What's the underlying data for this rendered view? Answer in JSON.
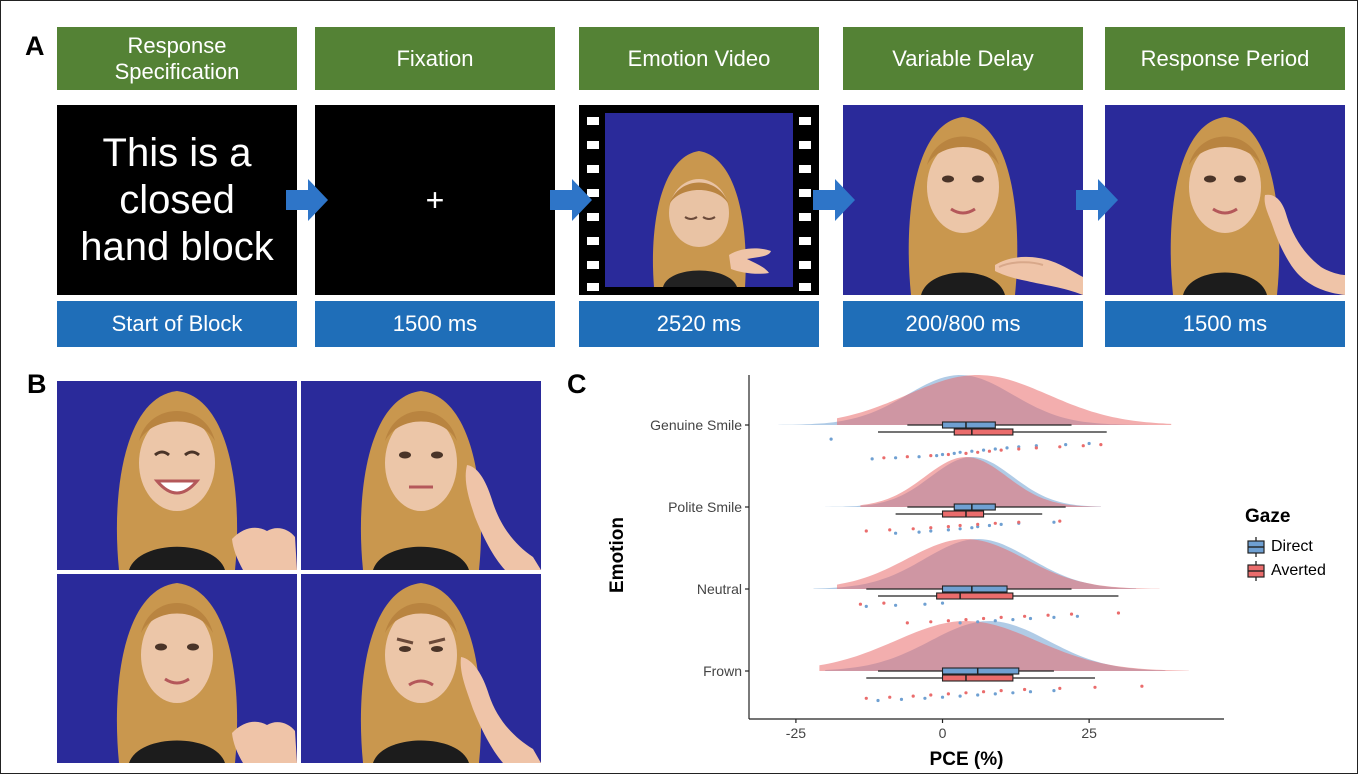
{
  "panels": {
    "a": "A",
    "b": "B",
    "c": "C"
  },
  "timeline": {
    "stages": [
      {
        "header": "Response Specification",
        "duration": "Start of Block"
      },
      {
        "header": "Fixation",
        "duration": "1500 ms"
      },
      {
        "header": "Emotion Video",
        "duration": "2520 ms"
      },
      {
        "header": "Variable Delay",
        "duration": "200/800 ms"
      },
      {
        "header": "Response Period",
        "duration": "1500 ms"
      }
    ],
    "instruction_lines": [
      "This is a",
      "closed",
      "hand block"
    ],
    "fixation_symbol": "+"
  },
  "colors": {
    "header_green": "#548235",
    "duration_blue": "#1f6eb8",
    "arrow_blue": "#2e75c8",
    "direct": "#6fa0d2",
    "averted": "#ea6c6c",
    "face_background": "#2a2a9a"
  },
  "icons": [
    "arrow-right-icon",
    "film-strip-icon"
  ],
  "chart_data": {
    "type": "raincloud",
    "xlabel": "PCE (%)",
    "ylabel": "Emotion",
    "xlim": [
      -33,
      48
    ],
    "x_ticks": [
      -25,
      0,
      25
    ],
    "grid": false,
    "legend": {
      "title": "Gaze",
      "position": "right",
      "entries": [
        "Direct",
        "Averted"
      ]
    },
    "categories": [
      "Genuine Smile",
      "Polite Smile",
      "Neutral",
      "Frown"
    ],
    "series": [
      {
        "name": "Direct",
        "color": "#6fa0d2",
        "box": [
          {
            "whisker_low": -6,
            "q1": 0,
            "median": 4,
            "q3": 9,
            "whisker_high": 22
          },
          {
            "whisker_low": -6,
            "q1": 2,
            "median": 5,
            "q3": 9,
            "whisker_high": 21
          },
          {
            "whisker_low": -13,
            "q1": 0,
            "median": 5,
            "q3": 11,
            "whisker_high": 22
          },
          {
            "whisker_low": -11,
            "q1": 0,
            "median": 6,
            "q3": 13,
            "whisker_high": 19
          }
        ],
        "density": [
          {
            "range": [
              -28,
              35
            ],
            "peak": 3,
            "sd": 9
          },
          {
            "range": [
              -20,
              27
            ],
            "peak": 5,
            "sd": 7
          },
          {
            "range": [
              -22,
              33
            ],
            "peak": 6,
            "sd": 9
          },
          {
            "range": [
              -20,
              38
            ],
            "peak": 8,
            "sd": 10
          }
        ],
        "points": [
          [
            -19,
            -12,
            -8,
            -4,
            -1,
            0,
            2,
            3,
            5,
            7,
            9,
            11,
            13,
            16,
            21,
            25
          ],
          [
            -8,
            -4,
            -2,
            1,
            3,
            5,
            6,
            8,
            10,
            13,
            19
          ],
          [
            -13,
            -8,
            -3,
            0,
            3,
            6,
            9,
            12,
            15,
            19,
            23
          ],
          [
            -11,
            -7,
            -3,
            0,
            3,
            6,
            9,
            12,
            15,
            19
          ]
        ]
      },
      {
        "name": "Averted",
        "color": "#ea6c6c",
        "box": [
          {
            "whisker_low": -11,
            "q1": 2,
            "median": 5,
            "q3": 12,
            "whisker_high": 28
          },
          {
            "whisker_low": -8,
            "q1": 0,
            "median": 4,
            "q3": 7,
            "whisker_high": 17
          },
          {
            "whisker_low": -11,
            "q1": -1,
            "median": 3,
            "q3": 12,
            "whisker_high": 30
          },
          {
            "whisker_low": -13,
            "q1": 0,
            "median": 4,
            "q3": 12,
            "whisker_high": 26
          }
        ],
        "density": [
          {
            "range": [
              -18,
              39
            ],
            "peak": 6,
            "sd": 12
          },
          {
            "range": [
              -14,
              27
            ],
            "peak": 4,
            "sd": 7
          },
          {
            "range": [
              -18,
              37
            ],
            "peak": 4,
            "sd": 10
          },
          {
            "range": [
              -21,
              42
            ],
            "peak": 4,
            "sd": 12
          }
        ],
        "points": [
          [
            -10,
            -6,
            -2,
            1,
            4,
            6,
            8,
            10,
            13,
            16,
            20,
            24,
            27
          ],
          [
            -13,
            -9,
            -5,
            -2,
            1,
            3,
            6,
            9,
            13,
            20
          ],
          [
            -14,
            -10,
            -6,
            -2,
            1,
            4,
            7,
            10,
            14,
            18,
            22,
            30
          ],
          [
            -13,
            -9,
            -5,
            -2,
            1,
            4,
            7,
            10,
            14,
            20,
            26,
            34
          ]
        ]
      }
    ]
  }
}
